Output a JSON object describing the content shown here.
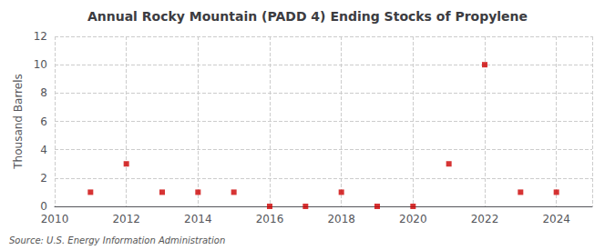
{
  "chart_data": {
    "type": "scatter",
    "title": "Annual Rocky Mountain (PADD 4) Ending Stocks of Propylene",
    "ylabel": "Thousand Barrels",
    "source": "Source: U.S. Energy Information Administration",
    "x": [
      2011,
      2012,
      2013,
      2014,
      2015,
      2016,
      2017,
      2018,
      2019,
      2020,
      2021,
      2022,
      2023,
      2024
    ],
    "values": [
      1,
      3,
      1,
      1,
      1,
      0,
      0,
      1,
      0,
      0,
      3,
      10,
      1,
      1
    ],
    "color": "#cc0000",
    "marker": "square",
    "xlim": [
      2010,
      2025
    ],
    "ylim": [
      0,
      12
    ],
    "xticks": [
      2010,
      2012,
      2014,
      2016,
      2018,
      2020,
      2022,
      2024
    ],
    "yticks": [
      0,
      2,
      4,
      6,
      8,
      10,
      12
    ],
    "grid": true
  }
}
